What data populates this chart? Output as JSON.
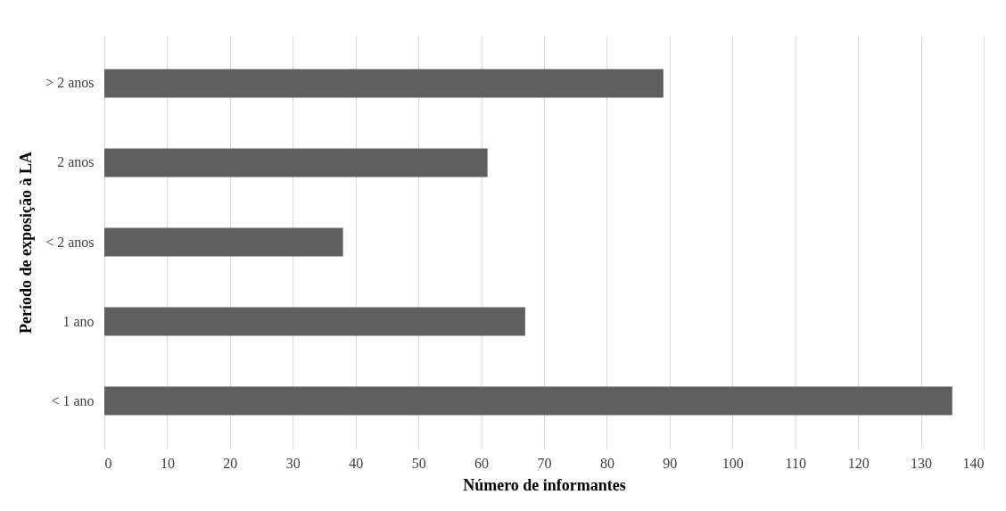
{
  "chart_data": {
    "type": "bar",
    "orientation": "horizontal",
    "categories": [
      "> 2 anos",
      "2 anos",
      "< 2 anos",
      "1 ano",
      "< 1 ano"
    ],
    "values": [
      89,
      61,
      38,
      67,
      135
    ],
    "color": "#5f5f5f",
    "xlabel": "Número de informantes",
    "ylabel": "Período de exposição à LA",
    "xlim": [
      0,
      140
    ],
    "xticks": [
      0,
      10,
      20,
      30,
      40,
      50,
      60,
      70,
      80,
      90,
      100,
      110,
      120,
      130,
      140
    ],
    "grid": "x"
  }
}
